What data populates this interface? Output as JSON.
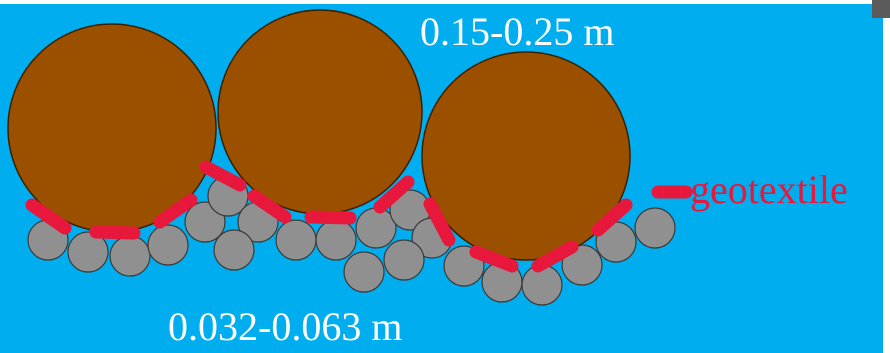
{
  "labels": {
    "large_stone_size": "0.15-0.25 m",
    "small_stone_size": "0.032-0.063 m",
    "geotextile": "geotextile"
  },
  "colors": {
    "water": "#00adef",
    "large_stone": "#9b5000",
    "small_stone": "#909090",
    "geotextile": "#e8173c",
    "text_main": "#ffffff"
  }
}
